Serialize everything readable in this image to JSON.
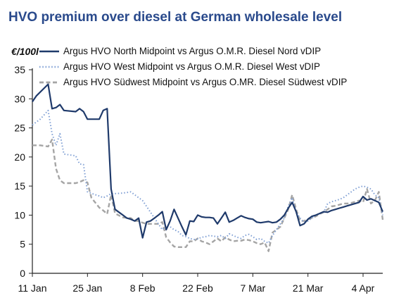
{
  "chart_data": {
    "type": "line",
    "title": "HVO premium over diesel at German wholesale level",
    "ylabel": "€/100l",
    "xlabel": "",
    "ylim": [
      0,
      35
    ],
    "yticks": [
      0,
      5,
      10,
      15,
      20,
      25,
      30,
      35
    ],
    "x_ticks": [
      {
        "label": "11 Jan",
        "day": 0
      },
      {
        "label": "25 Jan",
        "day": 14
      },
      {
        "label": "8 Feb",
        "day": 28
      },
      {
        "label": "22 Feb",
        "day": 42
      },
      {
        "label": "7 Mar",
        "day": 56
      },
      {
        "label": "21 Mar",
        "day": 70
      },
      {
        "label": "4 Apr",
        "day": 84
      }
    ],
    "xlim": [
      0,
      89
    ],
    "legend_position": "top",
    "series": [
      {
        "name": "Argus HVO North Midpoint vs Argus O.M.R. Diesel Nord vDIP",
        "color": "#1f3a6b",
        "style": "solid",
        "x": [
          0,
          1,
          4,
          5,
          6,
          7,
          8,
          11,
          12,
          13,
          14,
          17,
          18,
          19,
          20,
          21,
          22,
          23,
          24,
          25,
          26,
          27,
          28,
          29,
          30,
          31,
          32,
          33,
          34,
          35,
          36,
          37,
          38,
          39,
          40,
          41,
          42,
          43,
          44,
          45,
          46,
          47,
          48,
          49,
          50,
          51,
          52,
          53,
          54,
          55,
          56,
          57,
          58,
          59,
          60,
          61,
          62,
          63,
          64,
          65,
          66,
          67,
          68,
          69,
          70,
          71,
          72,
          73,
          74,
          75,
          76,
          77,
          78,
          79,
          80,
          81,
          82,
          83,
          84,
          85,
          86,
          87,
          88,
          89
        ],
        "values": [
          29.5,
          30.5,
          32.5,
          28.3,
          28.5,
          29.0,
          28.0,
          27.8,
          28.3,
          27.8,
          26.5,
          26.5,
          28.0,
          28.3,
          14.5,
          11.0,
          10.5,
          10.0,
          9.5,
          9.3,
          9.0,
          9.5,
          6.1,
          8.8,
          9.0,
          9.5,
          10.0,
          10.6,
          7.5,
          9.0,
          11.0,
          9.5,
          8.0,
          6.6,
          9.0,
          8.9,
          10.0,
          9.7,
          9.6,
          9.6,
          9.5,
          8.5,
          9.5,
          10.5,
          8.8,
          9.1,
          9.5,
          9.9,
          9.6,
          9.4,
          9.3,
          8.8,
          8.7,
          8.8,
          8.9,
          8.7,
          8.8,
          9.3,
          10.0,
          11.2,
          12.2,
          10.6,
          8.2,
          8.5,
          9.3,
          9.8,
          10.0,
          10.3,
          10.6,
          10.5,
          10.8,
          11.0,
          11.2,
          11.4,
          11.6,
          11.8,
          12.0,
          12.2,
          13.2,
          12.6,
          12.8,
          12.5,
          12.2,
          10.6
        ]
      },
      {
        "name": "Argus HVO West Midpoint vs Argus O.M.R. Diesel West vDIP",
        "color": "#7f9fd4",
        "style": "dotted",
        "x": [
          0,
          2,
          4,
          5,
          6,
          7,
          8,
          11,
          12,
          13,
          14,
          16,
          17,
          18,
          19,
          20,
          21,
          23,
          25,
          26,
          27,
          28,
          29,
          30,
          31,
          32,
          33,
          34,
          35,
          36,
          37,
          38,
          39,
          40,
          41,
          42,
          43,
          44,
          45,
          46,
          47,
          48,
          49,
          50,
          51,
          52,
          53,
          54,
          55,
          56,
          57,
          58,
          59,
          60,
          61,
          62,
          63,
          64,
          65,
          66,
          67,
          68,
          69,
          70,
          71,
          72,
          73,
          74,
          75,
          76,
          77,
          78,
          79,
          80,
          81,
          82,
          83,
          84,
          85,
          86,
          87,
          88,
          89
        ],
        "values": [
          25.5,
          26.5,
          28.0,
          24.0,
          22.0,
          24.0,
          20.5,
          20.2,
          18.8,
          18.7,
          14.0,
          13.5,
          13.3,
          13.0,
          13.3,
          13.7,
          13.7,
          13.8,
          14.0,
          13.5,
          13.0,
          12.5,
          11.5,
          10.5,
          9.5,
          8.5,
          7.5,
          8.2,
          8.0,
          7.5,
          7.2,
          6.5,
          6.3,
          6.0,
          5.8,
          5.9,
          6.2,
          6.3,
          6.5,
          6.4,
          6.3,
          6.5,
          6.0,
          6.8,
          6.5,
          6.2,
          6.0,
          6.5,
          6.7,
          6.3,
          5.8,
          6.0,
          5.5,
          5.2,
          6.5,
          7.5,
          8.5,
          9.5,
          11.5,
          13.0,
          10.5,
          9.5,
          8.8,
          9.0,
          9.5,
          10.0,
          10.3,
          10.5,
          12.0,
          12.3,
          12.5,
          12.7,
          13.0,
          13.5,
          14.0,
          14.5,
          14.8,
          15.0,
          14.8,
          14.5,
          13.5,
          13.0,
          10.0
        ]
      },
      {
        "name": "Argus HVO Südwest Midpoint vs Argus O.MR. Diesel Südwest vDIP",
        "color": "#a5a5a5",
        "style": "dashed",
        "x": [
          0,
          2,
          4,
          5,
          6,
          7,
          8,
          11,
          12,
          13,
          14,
          15,
          17,
          18,
          19,
          20,
          21,
          23,
          25,
          26,
          27,
          28,
          29,
          30,
          31,
          32,
          33,
          34,
          35,
          36,
          37,
          38,
          39,
          40,
          41,
          42,
          43,
          44,
          45,
          46,
          47,
          48,
          49,
          50,
          51,
          52,
          53,
          54,
          55,
          56,
          57,
          58,
          59,
          60,
          61,
          62,
          63,
          64,
          65,
          66,
          67,
          68,
          69,
          70,
          71,
          72,
          73,
          74,
          75,
          76,
          77,
          78,
          79,
          80,
          81,
          82,
          83,
          84,
          85,
          86,
          87,
          88,
          89
        ],
        "values": [
          22.0,
          22.0,
          21.8,
          23.0,
          18.0,
          16.0,
          15.5,
          15.5,
          15.7,
          16.0,
          15.6,
          13.0,
          11.3,
          10.8,
          10.2,
          13.5,
          10.3,
          9.6,
          9.5,
          9.0,
          9.0,
          8.7,
          8.5,
          8.5,
          8.5,
          8.5,
          8.8,
          6.2,
          5.3,
          4.6,
          4.5,
          4.5,
          4.5,
          5.5,
          5.5,
          6.0,
          5.5,
          5.3,
          5.0,
          5.5,
          6.0,
          5.5,
          6.2,
          5.8,
          5.5,
          5.6,
          5.6,
          5.8,
          5.7,
          5.5,
          5.2,
          5.0,
          5.3,
          3.8,
          7.0,
          7.5,
          8.0,
          9.5,
          11.0,
          13.5,
          11.0,
          9.0,
          9.0,
          9.3,
          9.5,
          9.8,
          10.2,
          10.5,
          11.0,
          11.5,
          11.6,
          11.8,
          12.0,
          12.0,
          12.1,
          12.3,
          12.5,
          12.2,
          14.5,
          12.0,
          12.5,
          14.0,
          9.2
        ]
      }
    ]
  }
}
